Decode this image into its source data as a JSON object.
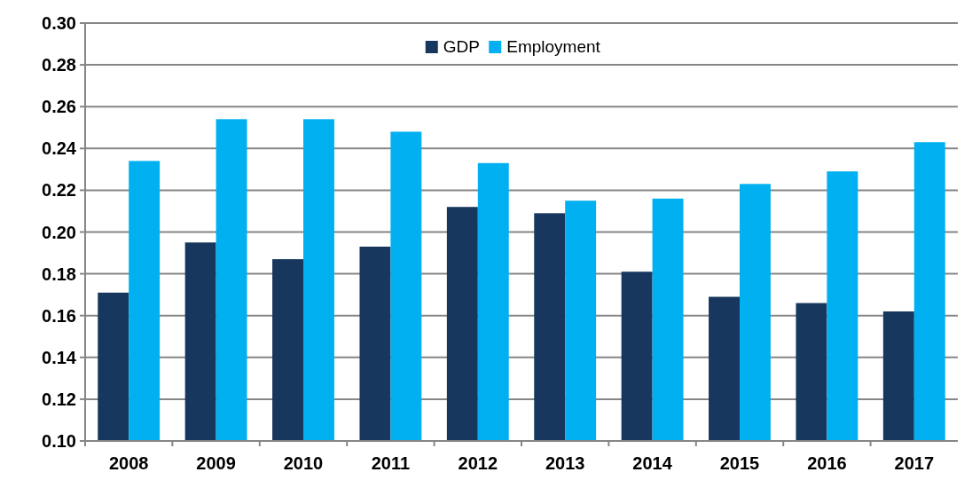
{
  "chart_data": {
    "type": "bar",
    "categories": [
      "2008",
      "2009",
      "2010",
      "2011",
      "2012",
      "2013",
      "2014",
      "2015",
      "2016",
      "2017"
    ],
    "series": [
      {
        "name": "GDP",
        "color": "#17375e",
        "values": [
          0.171,
          0.195,
          0.187,
          0.193,
          0.212,
          0.209,
          0.181,
          0.169,
          0.166,
          0.162
        ]
      },
      {
        "name": "Employment",
        "color": "#00b0f0",
        "values": [
          0.234,
          0.254,
          0.254,
          0.248,
          0.233,
          0.215,
          0.216,
          0.223,
          0.229,
          0.243
        ]
      }
    ],
    "ylim": [
      0.1,
      0.3
    ],
    "yticks": [
      {
        "value": 0.1,
        "label": "0.10"
      },
      {
        "value": 0.12,
        "label": "0.12"
      },
      {
        "value": 0.14,
        "label": "0.14"
      },
      {
        "value": 0.16,
        "label": "0.16"
      },
      {
        "value": 0.18,
        "label": "0.18"
      },
      {
        "value": 0.2,
        "label": "0.20"
      },
      {
        "value": 0.22,
        "label": "0.22"
      },
      {
        "value": 0.24,
        "label": "0.24"
      },
      {
        "value": 0.26,
        "label": "0.26"
      },
      {
        "value": 0.28,
        "label": "0.28"
      },
      {
        "value": 0.3,
        "label": "0.30"
      }
    ],
    "grid": "y",
    "legend": "top"
  }
}
